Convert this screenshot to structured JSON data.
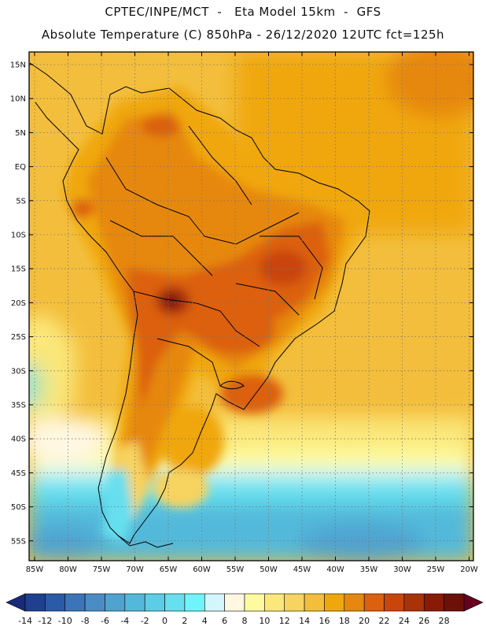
{
  "header": {
    "line1": "CPTEC/INPE/MCT  -   Eta Model 15km  -  GFS",
    "line2": "Absolute Temperature (C) 850hPa - 26/12/2020 12UTC fct=125h"
  },
  "axes": {
    "lat_labels": [
      "15N",
      "10N",
      "5N",
      "EQ",
      "5S",
      "10S",
      "15S",
      "20S",
      "25S",
      "30S",
      "35S",
      "40S",
      "45S",
      "50S",
      "55S"
    ],
    "lon_labels": [
      "85W",
      "80W",
      "75W",
      "70W",
      "65W",
      "60W",
      "55W",
      "50W",
      "45W",
      "40W",
      "35W",
      "30W",
      "25W",
      "20W"
    ]
  },
  "colorbar": {
    "labels": [
      "-14",
      "-12",
      "-10",
      "-8",
      "-6",
      "-4",
      "-2",
      "0",
      "2",
      "4",
      "6",
      "8",
      "10",
      "12",
      "14",
      "16",
      "18",
      "20",
      "22",
      "24",
      "26",
      "28"
    ],
    "colors": [
      "#1f3f8f",
      "#2a5aa8",
      "#3b74b8",
      "#4a8cc6",
      "#4fa3cf",
      "#53b9da",
      "#5ccde6",
      "#66dfee",
      "#6ef4fa",
      "#d2f6fb",
      "#fff7e2",
      "#fdfb9e",
      "#fbe77a",
      "#f7d35f",
      "#f3be3c",
      "#f0a70c",
      "#e6880f",
      "#dc600d",
      "#c9450b",
      "#a93208",
      "#8a1a08",
      "#6d1108"
    ],
    "under_color": "#1a2a7a",
    "over_color": "#67001f"
  }
}
